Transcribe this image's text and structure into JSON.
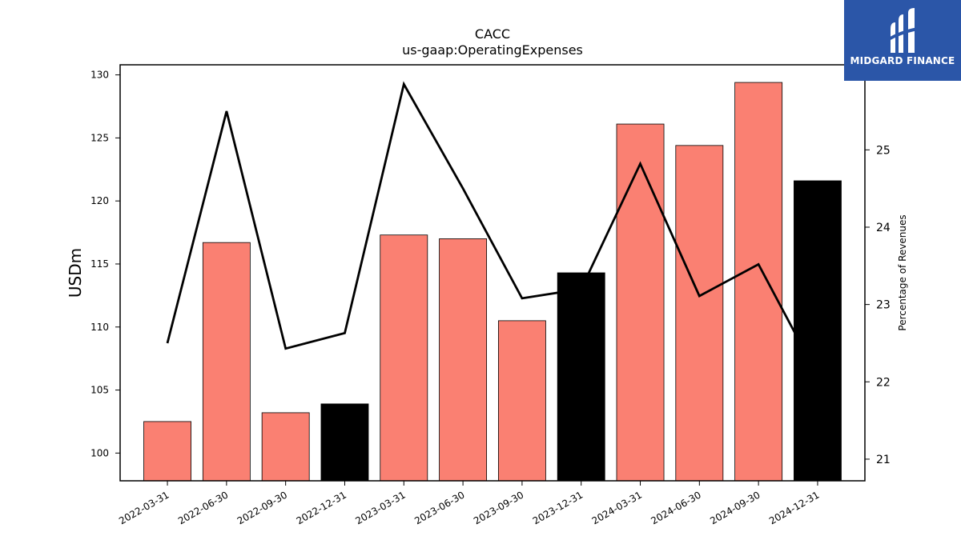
{
  "chart_data": {
    "type": "bar",
    "title": "CACC",
    "subtitle": "us-gaap:OperatingExpenses",
    "ylabel": "USDm",
    "y2label": "Percentage of Revenues",
    "categories": [
      "2022-03-31",
      "2022-06-30",
      "2022-09-30",
      "2022-12-31",
      "2023-03-31",
      "2023-06-30",
      "2023-09-30",
      "2023-12-31",
      "2024-03-31",
      "2024-06-30",
      "2024-09-30",
      "2024-12-31"
    ],
    "series": [
      {
        "values": [
          102.5,
          116.7,
          103.2,
          103.9,
          117.3,
          117.0,
          110.5,
          114.3,
          126.1,
          124.4,
          129.4,
          121.6
        ],
        "colors": [
          "#fa8072",
          "#fa8072",
          "#fa8072",
          "#000000",
          "#fa8072",
          "#fa8072",
          "#fa8072",
          "#000000",
          "#fa8072",
          "#fa8072",
          "#fa8072",
          "#000000"
        ]
      },
      {
        "axis": "right",
        "type": "line",
        "color": "#000000",
        "values": [
          22.5,
          25.5,
          22.43,
          22.63,
          25.85,
          24.5,
          23.08,
          23.2,
          24.82,
          23.11,
          23.52,
          22.08
        ]
      }
    ],
    "ylim": [
      97.8,
      130.8
    ],
    "y2lim": [
      20.72,
      26.1
    ],
    "yticks": [
      100,
      105,
      110,
      115,
      120,
      125,
      130
    ],
    "y2ticks": [
      21,
      22,
      23,
      24,
      25
    ]
  },
  "logo": {
    "text": "MIDGARD FINANCE",
    "color": "#2b56a8"
  }
}
